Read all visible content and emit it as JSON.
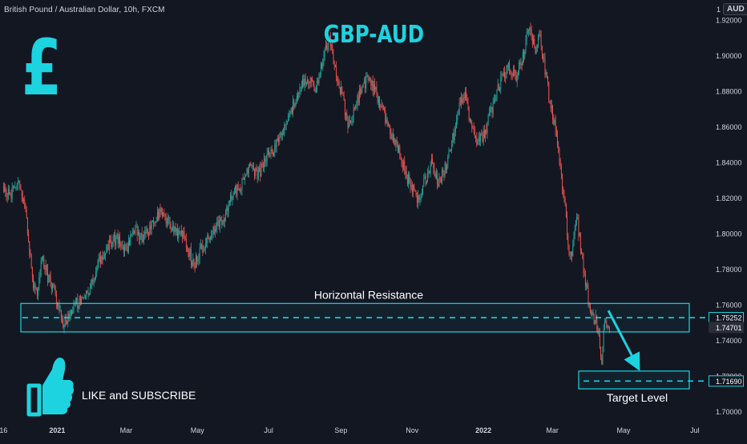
{
  "header": {
    "symbol_title": "British Pound / Australian Dollar, 10h, FXCM",
    "currency_number": "1",
    "currency_code": "AUD"
  },
  "overlay": {
    "pound_symbol": "£",
    "like_text": "LIKE and SUBSCRIBE",
    "colors": {
      "accent": "#1dd3e0",
      "up": "#26a69a",
      "down": "#ef5350",
      "background": "#131722"
    }
  },
  "chart_data": {
    "type": "candlestick",
    "title": "GBP-AUD",
    "xlabel": "",
    "ylabel": "",
    "ylim": [
      1.695,
      1.931
    ],
    "y_ticks": [
      "1.70000",
      "1.72000",
      "1.74000",
      "1.76000",
      "1.78000",
      "1.80000",
      "1.82000",
      "1.84000",
      "1.86000",
      "1.88000",
      "1.90000",
      "1.92000"
    ],
    "y_tick_values": [
      1.7,
      1.72,
      1.74,
      1.76,
      1.78,
      1.8,
      1.82,
      1.84,
      1.86,
      1.88,
      1.9,
      1.92
    ],
    "x_ticks": [
      "16",
      "2021",
      "Mar",
      "May",
      "Jul",
      "Sep",
      "Nov",
      "2022",
      "Mar",
      "May",
      "Jul"
    ],
    "x_tick_dates": [
      "2020-11-16",
      "2021-01-01",
      "2021-03-01",
      "2021-05-01",
      "2021-07-01",
      "2021-09-01",
      "2021-11-01",
      "2022-01-01",
      "2022-03-01",
      "2022-05-01",
      "2022-07-01"
    ],
    "bold_x_ticks": [
      "2021",
      "2022"
    ],
    "price_path": [
      [
        "2020-11-16",
        1.826
      ],
      [
        "2020-11-22",
        1.822
      ],
      [
        "2020-11-28",
        1.828
      ],
      [
        "2020-12-04",
        1.818
      ],
      [
        "2020-12-08",
        1.792
      ],
      [
        "2020-12-11",
        1.772
      ],
      [
        "2020-12-15",
        1.766
      ],
      [
        "2020-12-19",
        1.788
      ],
      [
        "2020-12-24",
        1.775
      ],
      [
        "2020-12-31",
        1.765
      ],
      [
        "2021-01-06",
        1.748
      ],
      [
        "2021-01-12",
        1.755
      ],
      [
        "2021-01-20",
        1.762
      ],
      [
        "2021-01-28",
        1.768
      ],
      [
        "2021-02-05",
        1.782
      ],
      [
        "2021-02-14",
        1.793
      ],
      [
        "2021-02-22",
        1.797
      ],
      [
        "2021-03-01",
        1.79
      ],
      [
        "2021-03-08",
        1.802
      ],
      [
        "2021-03-15",
        1.796
      ],
      [
        "2021-03-22",
        1.805
      ],
      [
        "2021-04-01",
        1.812
      ],
      [
        "2021-04-10",
        1.803
      ],
      [
        "2021-04-20",
        1.797
      ],
      [
        "2021-04-28",
        1.782
      ],
      [
        "2021-05-05",
        1.792
      ],
      [
        "2021-05-14",
        1.8
      ],
      [
        "2021-05-24",
        1.81
      ],
      [
        "2021-06-01",
        1.822
      ],
      [
        "2021-06-08",
        1.828
      ],
      [
        "2021-06-15",
        1.836
      ],
      [
        "2021-06-22",
        1.832
      ],
      [
        "2021-06-29",
        1.842
      ],
      [
        "2021-07-06",
        1.848
      ],
      [
        "2021-07-13",
        1.858
      ],
      [
        "2021-07-20",
        1.868
      ],
      [
        "2021-07-27",
        1.88
      ],
      [
        "2021-08-03",
        1.887
      ],
      [
        "2021-08-10",
        1.882
      ],
      [
        "2021-08-16",
        1.895
      ],
      [
        "2021-08-22",
        1.91
      ],
      [
        "2021-08-26",
        1.894
      ],
      [
        "2021-09-01",
        1.88
      ],
      [
        "2021-09-07",
        1.862
      ],
      [
        "2021-09-12",
        1.868
      ],
      [
        "2021-09-18",
        1.88
      ],
      [
        "2021-09-24",
        1.888
      ],
      [
        "2021-09-30",
        1.88
      ],
      [
        "2021-10-07",
        1.868
      ],
      [
        "2021-10-14",
        1.855
      ],
      [
        "2021-10-21",
        1.845
      ],
      [
        "2021-10-27",
        1.832
      ],
      [
        "2021-11-02",
        1.825
      ],
      [
        "2021-11-06",
        1.818
      ],
      [
        "2021-11-12",
        1.83
      ],
      [
        "2021-11-18",
        1.84
      ],
      [
        "2021-11-24",
        1.828
      ],
      [
        "2021-12-01",
        1.84
      ],
      [
        "2021-12-07",
        1.857
      ],
      [
        "2021-12-12",
        1.872
      ],
      [
        "2021-12-16",
        1.88
      ],
      [
        "2021-12-21",
        1.86
      ],
      [
        "2021-12-27",
        1.85
      ],
      [
        "2022-01-03",
        1.858
      ],
      [
        "2022-01-08",
        1.87
      ],
      [
        "2022-01-15",
        1.884
      ],
      [
        "2022-01-22",
        1.893
      ],
      [
        "2022-01-29",
        1.888
      ],
      [
        "2022-02-04",
        1.9
      ],
      [
        "2022-02-09",
        1.918
      ],
      [
        "2022-02-14",
        1.902
      ],
      [
        "2022-02-18",
        1.91
      ],
      [
        "2022-02-22",
        1.895
      ],
      [
        "2022-02-26",
        1.878
      ],
      [
        "2022-03-03",
        1.86
      ],
      [
        "2022-03-07",
        1.842
      ],
      [
        "2022-03-11",
        1.82
      ],
      [
        "2022-03-15",
        1.792
      ],
      [
        "2022-03-18",
        1.785
      ],
      [
        "2022-03-21",
        1.81
      ],
      [
        "2022-03-24",
        1.8
      ],
      [
        "2022-03-27",
        1.782
      ],
      [
        "2022-03-30",
        1.768
      ],
      [
        "2022-04-02",
        1.76
      ],
      [
        "2022-04-05",
        1.75
      ],
      [
        "2022-04-07",
        1.752
      ],
      [
        "2022-04-09",
        1.744
      ],
      [
        "2022-04-11",
        1.738
      ],
      [
        "2022-04-12",
        1.721
      ],
      [
        "2022-04-13",
        1.738
      ],
      [
        "2022-04-15",
        1.75
      ],
      [
        "2022-04-17",
        1.746
      ],
      [
        "2022-04-19",
        1.747
      ]
    ],
    "annotations": {
      "resistance_label": "Horizontal Resistance",
      "resistance_zone": [
        1.7445,
        1.7605
      ],
      "resistance_line": 1.75252,
      "target_label": "Target Level",
      "target_zone": [
        1.7125,
        1.7225
      ],
      "target_line": 1.7169,
      "arrow_from": [
        "2022-04-18",
        1.7565
      ],
      "arrow_to": [
        "2022-05-15",
        1.7225
      ]
    },
    "price_labels": [
      {
        "text": "1.75252",
        "value": 1.75252,
        "style": "outline"
      },
      {
        "text": "1.74701",
        "value": 1.74701,
        "style": "filled"
      },
      {
        "text": "1.71690",
        "value": 1.7169,
        "style": "outline"
      }
    ],
    "grid": false,
    "legend": "none"
  }
}
